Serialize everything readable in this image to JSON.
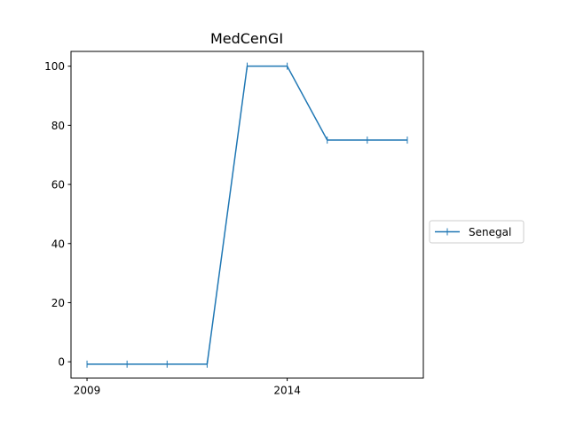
{
  "chart_data": {
    "type": "line",
    "title": "MedCenGI",
    "xlabel": "",
    "ylabel": "",
    "x": [
      2009,
      2010,
      2011,
      2012,
      2013,
      2014,
      2015,
      2016,
      2017
    ],
    "series": [
      {
        "name": "Senegal",
        "color": "#1f77b4",
        "marker": "|",
        "values": [
          -0.8,
          -0.8,
          -0.8,
          -0.8,
          100,
          100,
          75,
          75,
          75
        ]
      }
    ],
    "xlim": [
      2008.6,
      2017.4
    ],
    "ylim": [
      -5.5,
      105
    ],
    "xticks": [
      2009,
      2014
    ],
    "yticks": [
      0,
      20,
      40,
      60,
      80,
      100
    ],
    "legend": "right-center",
    "grid": false
  }
}
